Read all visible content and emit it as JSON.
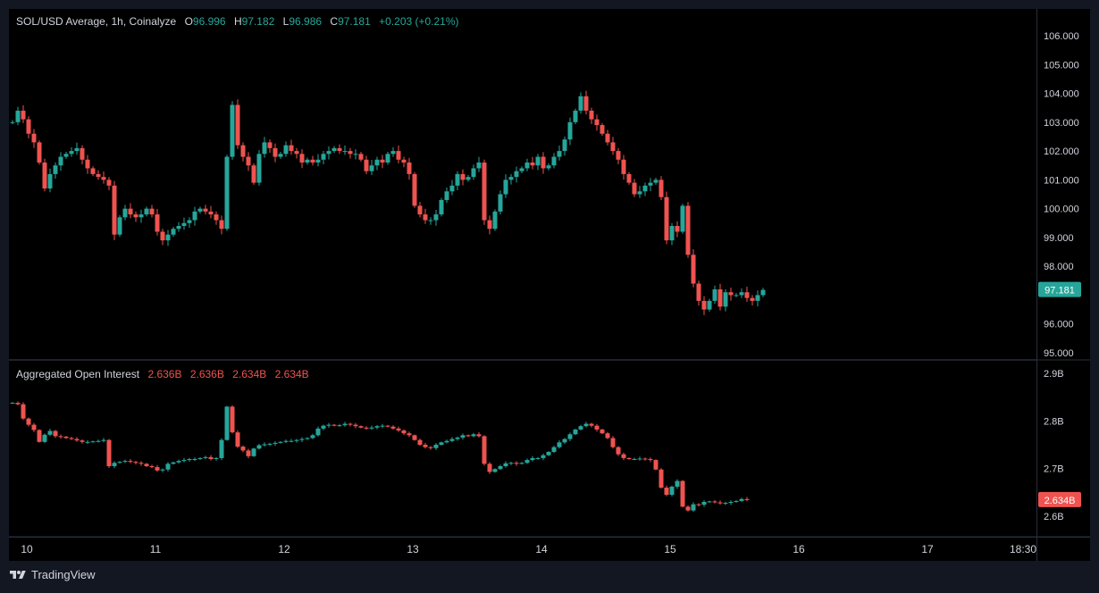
{
  "header": {
    "symbol": "SOL/USD Average, 1h, Coinalyze",
    "o_label": "O",
    "o_value": "96.996",
    "h_label": "H",
    "h_value": "97.182",
    "l_label": "L",
    "l_value": "96.986",
    "c_label": "C",
    "c_value": "97.181",
    "change": "+0.203 (+0.21%)"
  },
  "oi_header": {
    "title": "Aggregated Open Interest",
    "v1": "2.636B",
    "v2": "2.636B",
    "v3": "2.634B",
    "v4": "2.634B"
  },
  "price_axis": {
    "ticks": [
      "106.000",
      "105.000",
      "104.000",
      "103.000",
      "102.000",
      "101.000",
      "100.000",
      "99.000",
      "98.000",
      "96.000",
      "95.000"
    ],
    "tick_values": [
      106,
      105,
      104,
      103,
      102,
      101,
      100,
      99,
      98,
      96,
      95
    ],
    "last_label": "97.181",
    "last_value": 97.181
  },
  "oi_axis": {
    "ticks": [
      "2.9B",
      "2.8B",
      "2.7B",
      "2.6B"
    ],
    "tick_values": [
      2.9,
      2.8,
      2.7,
      2.6
    ],
    "last_label": "2.634B",
    "last_value": 2.634
  },
  "time_axis": {
    "ticks": [
      "10",
      "11",
      "12",
      "13",
      "14",
      "15",
      "16",
      "17",
      "18:30"
    ]
  },
  "watermark": "TradingView",
  "colors": {
    "background": "#000000",
    "up": "#26a69a",
    "down": "#ef5350",
    "text": "#d1d4dc",
    "border": "#2a2e39"
  },
  "chart_data": [
    {
      "type": "candlestick",
      "title": "SOL/USD Average, 1h, Coinalyze",
      "x_categories": [
        "10",
        "11",
        "12",
        "13",
        "14",
        "15",
        "16",
        "17"
      ],
      "ylim": [
        95,
        106.3
      ],
      "series": [
        {
          "values_close_hourly": [
            103.0,
            103.4,
            103.1,
            102.6,
            102.3,
            101.6,
            100.7,
            101.2,
            101.5,
            101.8,
            101.9,
            102.0,
            102.1,
            101.7,
            101.4,
            101.2,
            101.1,
            101.0,
            100.8,
            99.1,
            99.7,
            100.0,
            99.8,
            99.7,
            99.8,
            100.0,
            99.8,
            99.2,
            98.9,
            99.1,
            99.3,
            99.4,
            99.5,
            99.6,
            99.9,
            100.0,
            99.9,
            99.8,
            99.6,
            99.3,
            101.8,
            103.6,
            102.2,
            101.8,
            101.5,
            100.9,
            101.9,
            102.3,
            102.1,
            101.8,
            101.9,
            102.2,
            102.0,
            101.9,
            101.6,
            101.7,
            101.6,
            101.7,
            101.9,
            102.0,
            102.1,
            102.0,
            102.0,
            101.9,
            101.9,
            101.7,
            101.3,
            101.5,
            101.7,
            101.6,
            101.9,
            102.0,
            101.7,
            101.6,
            101.2,
            100.1,
            99.8,
            99.6,
            99.6,
            99.8,
            100.3,
            100.6,
            100.8,
            101.2,
            101.0,
            101.1,
            101.4,
            101.6,
            99.6,
            99.3,
            99.9,
            100.5,
            101.0,
            101.1,
            101.3,
            101.4,
            101.6,
            101.5,
            101.8,
            101.4,
            101.5,
            101.8,
            102.0,
            102.4,
            103.0,
            103.4,
            103.9,
            103.4,
            103.1,
            102.9,
            102.6,
            102.3,
            102.0,
            101.7,
            101.2,
            100.9,
            100.5,
            100.6,
            100.8,
            100.9,
            101.0,
            100.4,
            98.9,
            99.4,
            99.2,
            100.1,
            98.4,
            97.4,
            96.8,
            96.5,
            96.8,
            97.2,
            96.6,
            97.1,
            97.0,
            97.0,
            97.1,
            96.9,
            96.8,
            97.0,
            97.181
          ],
          "approximate": true
        }
      ],
      "last_price": 97.181
    },
    {
      "type": "candlestick",
      "title": "Aggregated Open Interest",
      "ylim": [
        2.58,
        2.92
      ],
      "series": [
        {
          "values_close_hourly": [
            2.838,
            2.835,
            2.805,
            2.792,
            2.781,
            2.756,
            2.771,
            2.779,
            2.768,
            2.767,
            2.764,
            2.762,
            2.759,
            2.756,
            2.756,
            2.757,
            2.758,
            2.76,
            2.705,
            2.712,
            2.714,
            2.716,
            2.714,
            2.712,
            2.71,
            2.705,
            2.703,
            2.696,
            2.698,
            2.71,
            2.713,
            2.716,
            2.718,
            2.72,
            2.72,
            2.722,
            2.724,
            2.72,
            2.722,
            2.76,
            2.83,
            2.776,
            2.746,
            2.738,
            2.726,
            2.742,
            2.749,
            2.751,
            2.752,
            2.754,
            2.756,
            2.758,
            2.758,
            2.76,
            2.762,
            2.764,
            2.77,
            2.784,
            2.79,
            2.792,
            2.79,
            2.791,
            2.794,
            2.792,
            2.789,
            2.786,
            2.784,
            2.786,
            2.789,
            2.79,
            2.788,
            2.784,
            2.78,
            2.774,
            2.77,
            2.76,
            2.75,
            2.745,
            2.743,
            2.75,
            2.755,
            2.758,
            2.762,
            2.765,
            2.77,
            2.768,
            2.772,
            2.768,
            2.71,
            2.693,
            2.699,
            2.705,
            2.711,
            2.712,
            2.71,
            2.712,
            2.718,
            2.722,
            2.722,
            2.728,
            2.735,
            2.745,
            2.755,
            2.762,
            2.772,
            2.782,
            2.789,
            2.794,
            2.79,
            2.782,
            2.774,
            2.764,
            2.745,
            2.73,
            2.722,
            2.72,
            2.72,
            2.721,
            2.72,
            2.718,
            2.698,
            2.66,
            2.645,
            2.662,
            2.674,
            2.62,
            2.612,
            2.625,
            2.624,
            2.63,
            2.631,
            2.629,
            2.627,
            2.628,
            2.63,
            2.632,
            2.636,
            2.634
          ],
          "approximate": true
        }
      ],
      "last_value": 2.634
    }
  ]
}
